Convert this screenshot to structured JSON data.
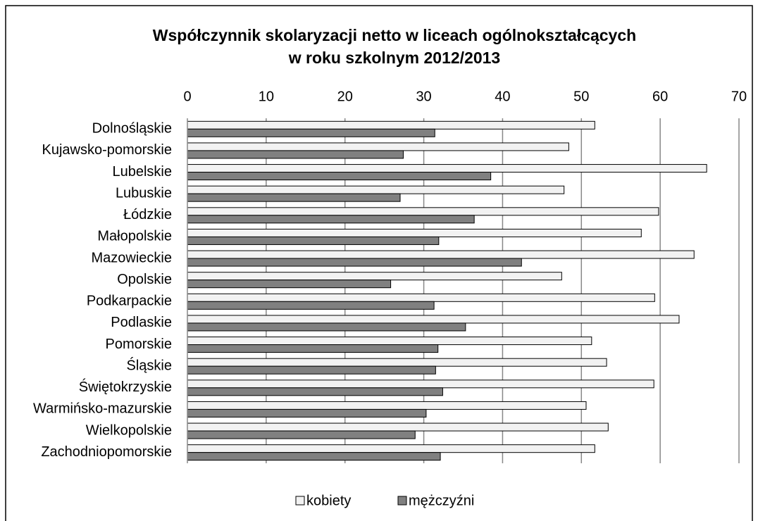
{
  "chart_data": {
    "type": "bar",
    "orientation": "horizontal",
    "title": [
      "Współczynnik skolaryzacji netto w liceach ogólnokształcących",
      "w roku szkolnym 2012/2013"
    ],
    "categories": [
      "Dolnośląskie",
      "Kujawsko-pomorskie",
      "Lubelskie",
      "Lubuskie",
      "Łódzkie",
      "Małopolskie",
      "Mazowieckie",
      "Opolskie",
      "Podkarpackie",
      "Podlaskie",
      "Pomorskie",
      "Śląskie",
      "Świętokrzyskie",
      "Warmińsko-mazurskie",
      "Wielkopolskie",
      "Zachodniopomorskie"
    ],
    "series": [
      {
        "name": "kobiety",
        "color": "#f2f2f2",
        "values": [
          51.7,
          48.4,
          65.9,
          47.8,
          59.8,
          57.6,
          64.3,
          47.5,
          59.3,
          62.4,
          51.3,
          53.2,
          59.2,
          50.6,
          53.4,
          51.7
        ]
      },
      {
        "name": "mężczyźni",
        "color": "#808080",
        "values": [
          31.4,
          27.4,
          38.5,
          27.0,
          36.4,
          31.9,
          42.4,
          25.8,
          31.3,
          35.3,
          31.8,
          31.5,
          32.4,
          30.3,
          28.9,
          32.1
        ]
      }
    ],
    "xlim": [
      0,
      70
    ],
    "xticks": [
      0,
      10,
      20,
      30,
      40,
      50,
      60,
      70
    ],
    "grid": true,
    "legend": "bottom"
  }
}
